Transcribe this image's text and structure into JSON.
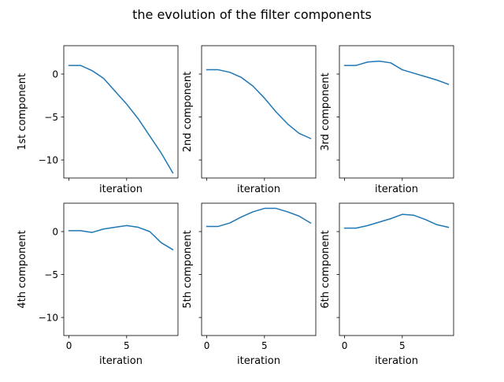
{
  "figure": {
    "title": "the evolution of the filter components"
  },
  "chart_data": {
    "type": "line",
    "x_label": "iteration",
    "x": [
      0,
      1,
      2,
      3,
      4,
      5,
      6,
      7,
      8,
      9
    ],
    "xlim": [
      -0.45,
      9.45
    ],
    "ylim": [
      -12.1,
      3.3
    ],
    "x_ticks": [
      0,
      5
    ],
    "y_ticks": [
      0,
      -5,
      -10
    ],
    "line_color": "#1f77b4",
    "grid": false,
    "shared_axes": true,
    "layout": {
      "rows": 2,
      "cols": 3
    },
    "panels": [
      {
        "ylabel": "1st component",
        "values": [
          1.0,
          1.0,
          0.4,
          -0.5,
          -2.0,
          -3.5,
          -5.2,
          -7.2,
          -9.2,
          -11.5
        ]
      },
      {
        "ylabel": "2nd component",
        "values": [
          0.5,
          0.5,
          0.2,
          -0.4,
          -1.4,
          -2.8,
          -4.4,
          -5.8,
          -6.9,
          -7.5
        ]
      },
      {
        "ylabel": "3rd component",
        "values": [
          1.0,
          1.0,
          1.4,
          1.5,
          1.3,
          0.5,
          0.1,
          -0.3,
          -0.7,
          -1.2
        ]
      },
      {
        "ylabel": "4th component",
        "values": [
          0.1,
          0.1,
          -0.1,
          0.3,
          0.5,
          0.7,
          0.5,
          0.0,
          -1.3,
          -2.1
        ]
      },
      {
        "ylabel": "5th component",
        "values": [
          0.6,
          0.6,
          1.0,
          1.7,
          2.3,
          2.7,
          2.7,
          2.3,
          1.8,
          1.0
        ]
      },
      {
        "ylabel": "6th component",
        "values": [
          0.4,
          0.4,
          0.7,
          1.1,
          1.5,
          2.0,
          1.9,
          1.4,
          0.8,
          0.5
        ]
      }
    ]
  }
}
